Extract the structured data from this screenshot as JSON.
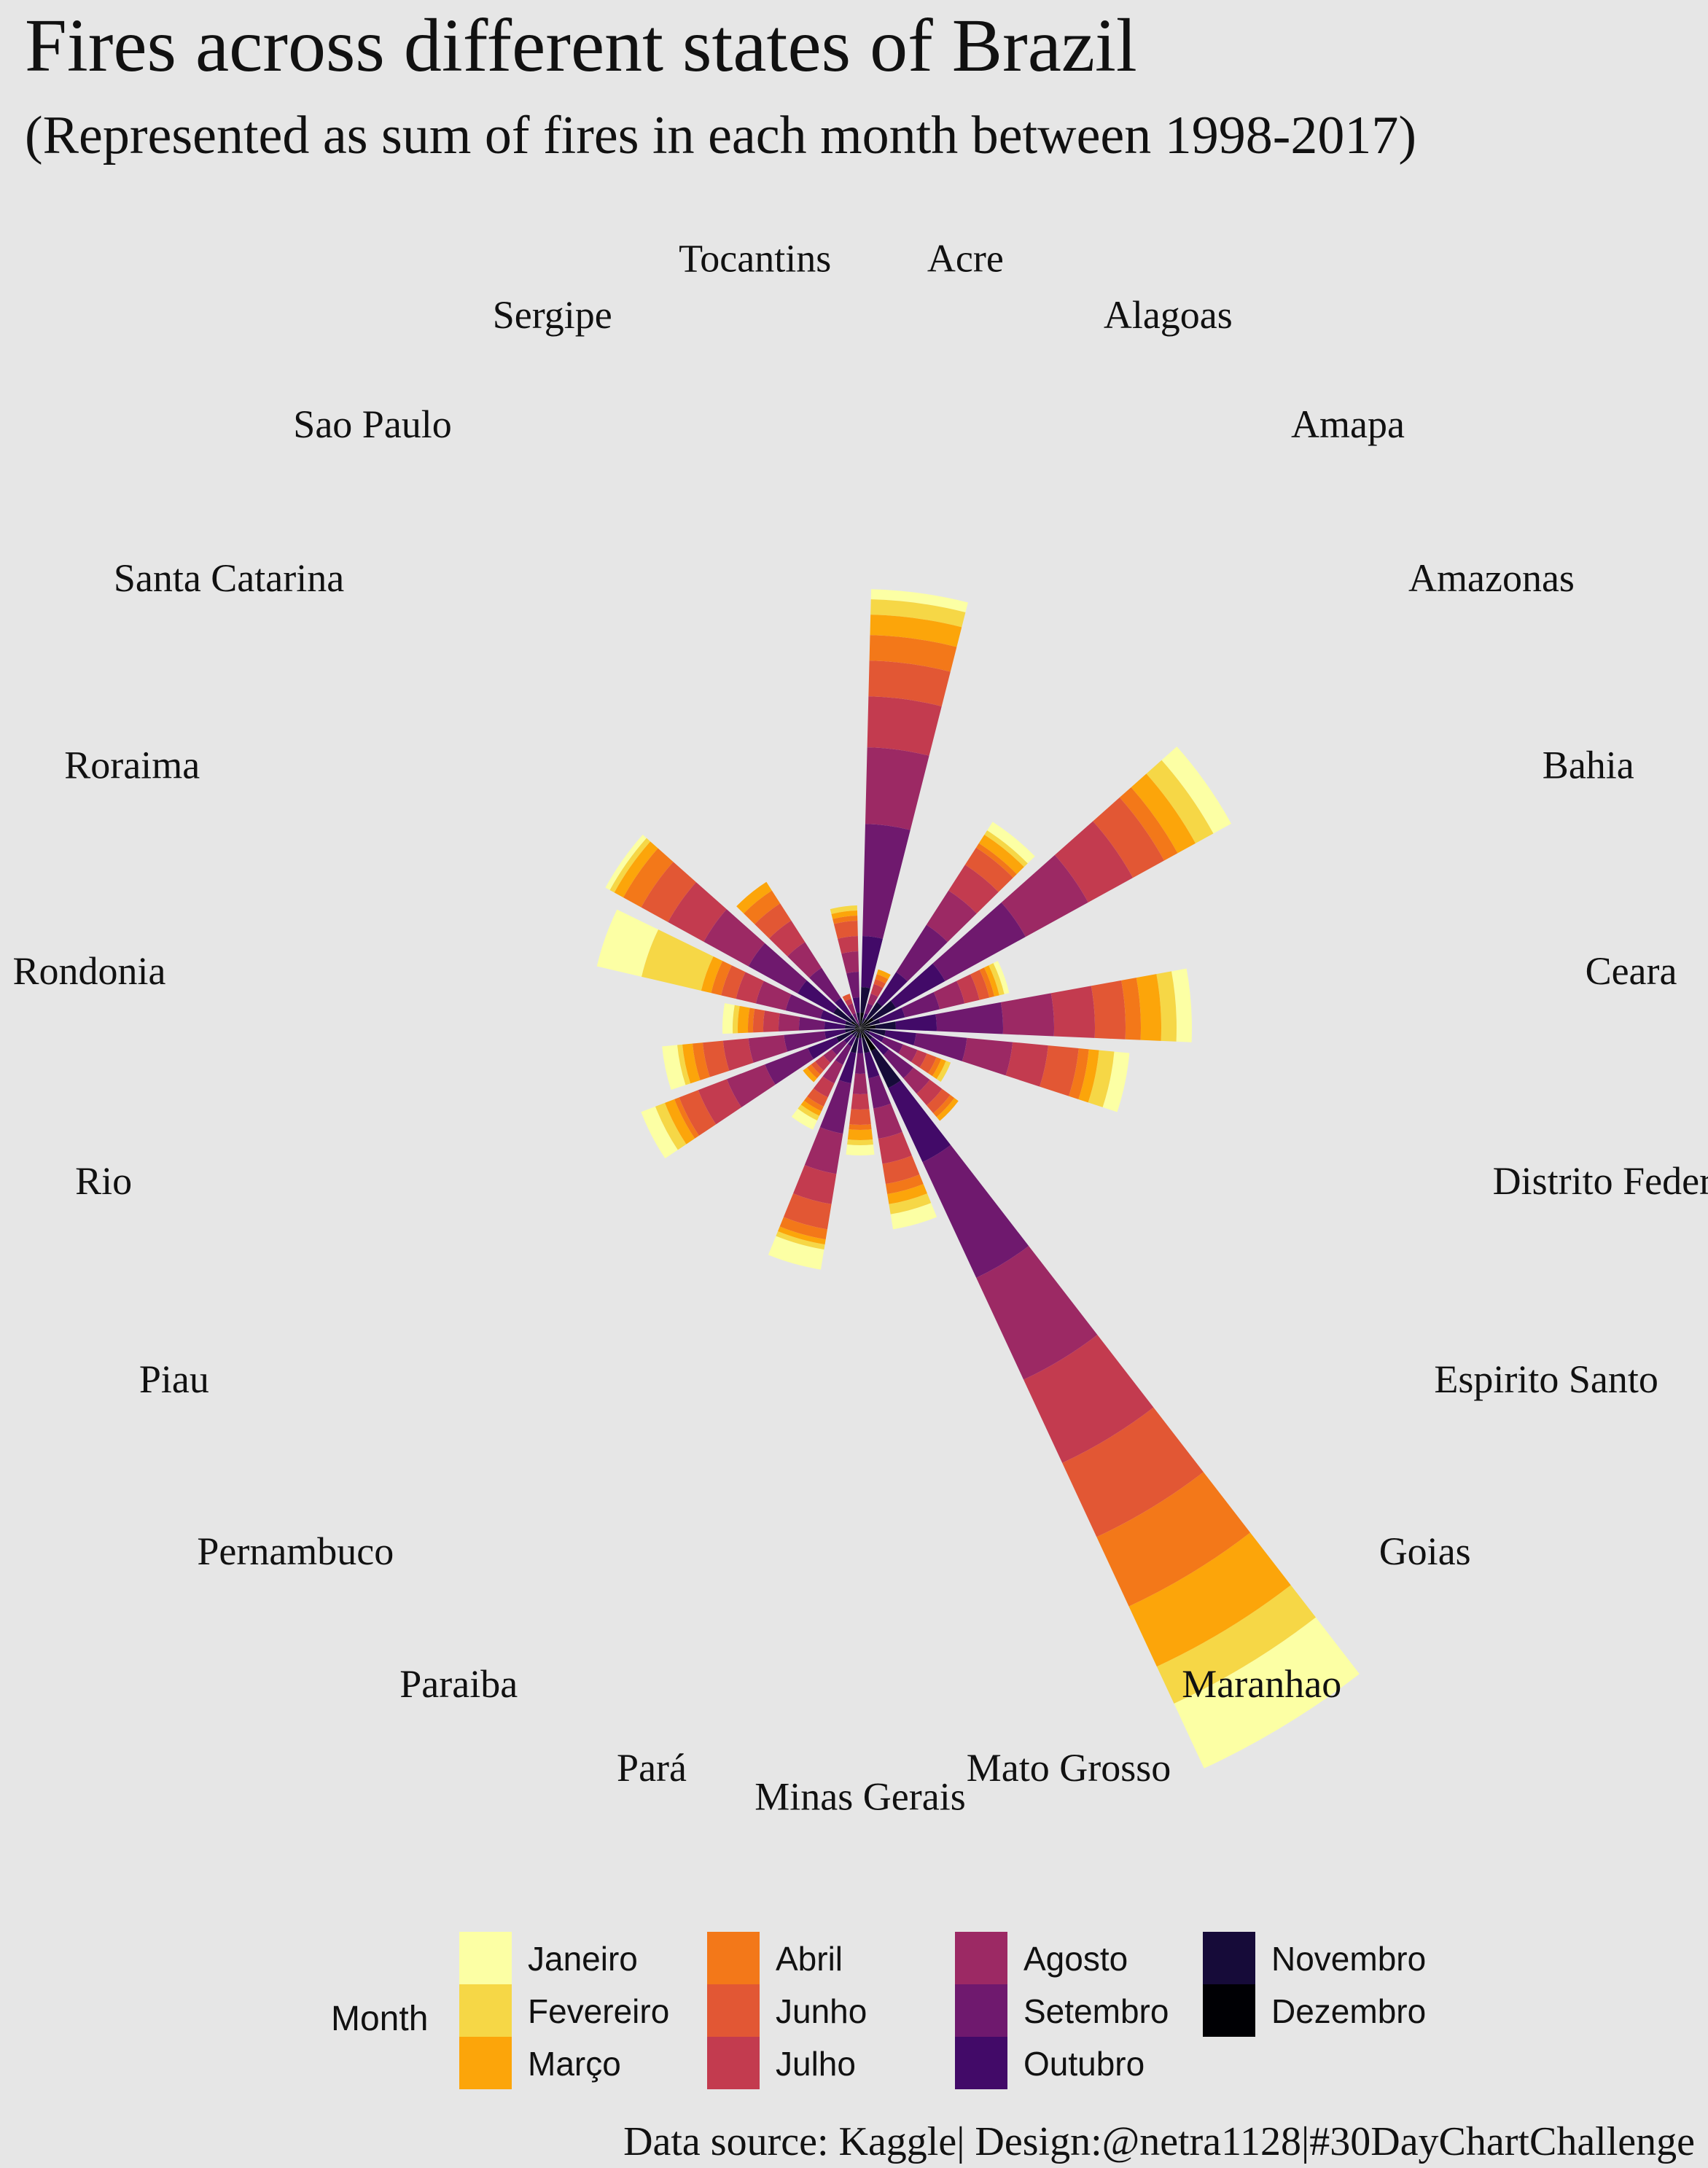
{
  "chart_data": {
    "type": "bar",
    "subtype": "circular stacked bar (polar)",
    "title": "Fires across different states of Brazil",
    "subtitle": "(Represented as sum of fires in each month between 1998-2017)",
    "caption": "Data source: Kaggle|  Design:@netra1128|#30DayChartChallenge",
    "legend_title": "Month",
    "legend_position": "bottom",
    "categories": [
      "Acre",
      "Alagoas",
      "Amapa",
      "Amazonas",
      "Bahia",
      "Ceara",
      "Distrito Federal",
      "Espirito Santo",
      "Goias",
      "Maranhao",
      "Mato Grosso",
      "Minas Gerais",
      "Pará",
      "Paraiba",
      "Pernambuco",
      "Piau",
      "Rio",
      "Rondonia",
      "Roraima",
      "Santa Catarina",
      "Sao Paulo",
      "Sergipe",
      "Tocantins"
    ],
    "series": [
      {
        "name": "Janeiro",
        "color": "#fcffa4",
        "values": [
          2,
          0,
          2,
          4,
          1,
          3,
          3,
          0,
          0,
          14,
          3,
          2,
          4,
          2,
          0,
          3,
          3,
          2,
          9,
          1,
          0,
          0,
          0
        ]
      },
      {
        "name": "Fevereiro",
        "color": "#f6d746",
        "values": [
          3,
          0,
          1,
          4,
          1,
          3,
          3,
          1,
          0,
          8,
          2,
          1,
          1,
          1,
          0,
          2,
          1,
          1,
          12,
          1,
          0,
          0,
          1
        ]
      },
      {
        "name": "Março",
        "color": "#fca50a",
        "values": [
          4,
          1,
          2,
          4,
          1,
          4,
          2,
          1,
          1,
          13,
          2,
          2,
          1,
          1,
          1,
          2,
          2,
          2,
          2,
          2,
          2,
          0,
          1
        ]
      },
      {
        "name": "Abril",
        "color": "#f37819",
        "values": [
          5,
          1,
          1,
          3,
          1,
          3,
          2,
          1,
          1,
          15,
          2,
          1,
          2,
          1,
          1,
          1,
          2,
          1,
          2,
          4,
          3,
          0,
          1
        ]
      },
      {
        "name": "Junho",
        "color": "#e25734",
        "values": [
          7,
          1,
          4,
          7,
          2,
          6,
          6,
          2,
          2,
          16,
          4,
          3,
          5,
          2,
          1,
          4,
          4,
          2,
          3,
          6,
          4,
          1,
          3
        ]
      },
      {
        "name": "Julho",
        "color": "#c33b4f",
        "values": [
          10,
          2,
          6,
          10,
          3,
          8,
          7,
          2,
          3,
          18,
          5,
          3,
          6,
          3,
          2,
          6,
          5,
          3,
          4,
          8,
          5,
          1,
          3
        ]
      },
      {
        "name": "Agosto",
        "color": "#9c2964",
        "values": [
          15,
          2,
          8,
          14,
          5,
          10,
          9,
          3,
          4,
          22,
          6,
          4,
          8,
          4,
          2,
          8,
          7,
          4,
          6,
          10,
          6,
          2,
          4
        ]
      },
      {
        "name": "Setembro",
        "color": "#6f196e",
        "values": [
          22,
          2,
          11,
          18,
          7,
          13,
          10,
          4,
          6,
          25,
          6,
          4,
          10,
          4,
          3,
          9,
          8,
          5,
          7,
          11,
          7,
          2,
          5
        ]
      },
      {
        "name": "Outubro",
        "color": "#420a68",
        "values": [
          10,
          1,
          7,
          11,
          5,
          8,
          6,
          3,
          4,
          16,
          5,
          3,
          6,
          2,
          2,
          6,
          4,
          4,
          5,
          8,
          4,
          1,
          3
        ]
      },
      {
        "name": "Novembro",
        "color": "#160b39",
        "values": [
          5,
          1,
          4,
          5,
          2,
          4,
          3,
          1,
          2,
          8,
          3,
          1,
          3,
          1,
          1,
          3,
          2,
          2,
          2,
          4,
          2,
          0,
          2
        ]
      },
      {
        "name": "Dezembro",
        "color": "#000004",
        "values": [
          3,
          1,
          2,
          3,
          2,
          3,
          2,
          1,
          1,
          5,
          2,
          1,
          2,
          1,
          1,
          2,
          1,
          1,
          1,
          2,
          1,
          0,
          1
        ]
      }
    ]
  }
}
